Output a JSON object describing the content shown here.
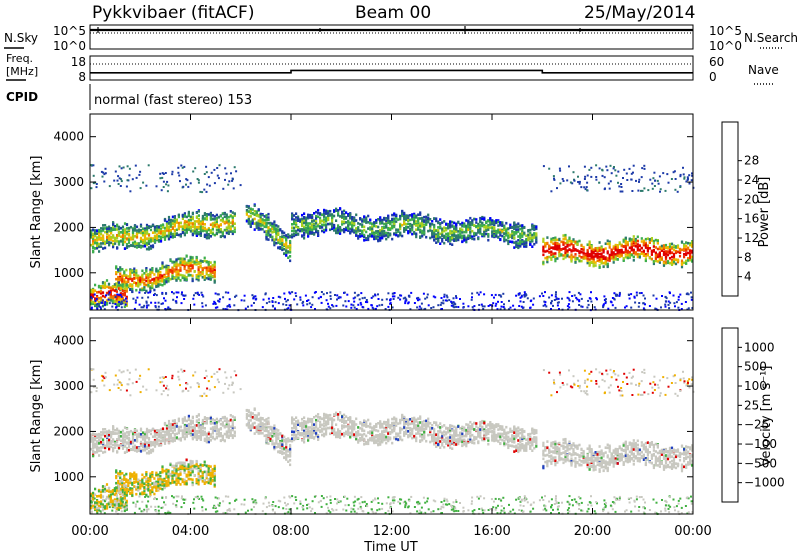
{
  "header": {
    "station": "Pykkvibaer (fitACF)",
    "beam": "Beam 00",
    "date": "25/May/2014"
  },
  "labels": {
    "nsky": "N.Sky",
    "nsearch": "N.Search",
    "freq_line1": "Freq.",
    "freq_line2": "[MHz]",
    "nave": "Nave",
    "cpid": "CPID",
    "cpid_text": "normal (fast stereo) 153",
    "x_title": "Time UT"
  },
  "colors": {
    "frame": "#000000",
    "background": "#ffffff",
    "ground_scatter": "#c8c8c0"
  },
  "chart_data": [
    {
      "type": "line",
      "panel": "noise",
      "series": [
        {
          "name": "N.Sky",
          "level": "approx 10^5"
        },
        {
          "name": "N.Search",
          "level": "approx 10^5"
        }
      ],
      "y_left_ticks": [
        "10^5",
        "10^0"
      ],
      "y_right_ticks": [
        "10^5",
        "10^0"
      ],
      "x_range_hours": [
        0,
        24
      ]
    },
    {
      "type": "line",
      "panel": "frequency",
      "y_left_ticks": [
        "18",
        "8"
      ],
      "y_right_ticks": [
        "60",
        "0"
      ],
      "freq_mhz_steps": [
        {
          "x": 0,
          "y": 11
        },
        {
          "x": 8,
          "y": 11
        },
        {
          "x": 8,
          "y": 12
        },
        {
          "x": 18,
          "y": 12
        },
        {
          "x": 18,
          "y": 11
        },
        {
          "x": 24,
          "y": 11
        }
      ],
      "nave_level": 40
    },
    {
      "type": "heatmap",
      "panel": "power",
      "ylabel": "Slant Range [km]",
      "ylim": [
        180,
        4500
      ],
      "y_ticks": [
        1000,
        2000,
        3000,
        4000
      ],
      "colorbar_title": "Power [dB]",
      "colorbar_ticks": [
        "4",
        "8",
        "12",
        "16",
        "20",
        "24",
        "28"
      ],
      "colorbar_range": [
        0,
        30
      ],
      "colorbar_colors": [
        "#0000ff",
        "#1c3aa8",
        "#2c7a6c",
        "#3cae4c",
        "#a8d020",
        "#f0b800",
        "#f07800",
        "#f03000",
        "#e00000"
      ],
      "bands_km": [
        {
          "t_start": 0,
          "t_end": 5.8,
          "r_start": 1700,
          "r_end": 2200,
          "r_mid_end": 2300,
          "power": 14
        },
        {
          "t_start": 6.2,
          "t_end": 8.0,
          "r_start": 2300,
          "r_end": 1600,
          "power": 12
        },
        {
          "t_start": 8.0,
          "t_end": 17.8,
          "r_start": 2150,
          "r_end": 1900,
          "power": 10
        },
        {
          "t_start": 1.0,
          "t_end": 5.0,
          "r_start": 850,
          "r_end": 1150,
          "power": 18
        },
        {
          "t_start": 18.0,
          "t_end": 24.0,
          "r_start": 1500,
          "r_end": 1500,
          "power": 24
        },
        {
          "t_start": 0,
          "t_end": 1.5,
          "r_start": 500,
          "r_end": 500,
          "power": 22
        }
      ]
    },
    {
      "type": "heatmap",
      "panel": "velocity",
      "ylabel": "Slant Range [km]",
      "ylim": [
        180,
        4500
      ],
      "y_ticks": [
        1000,
        2000,
        3000,
        4000
      ],
      "colorbar_title": "Velocity [m s⁻¹]",
      "colorbar_ticks": [
        "1000",
        "500",
        "100",
        "25",
        "−25",
        "−100",
        "−500",
        "−1000"
      ],
      "colorbar_colors": [
        "#2040c0",
        "#3060b0",
        "#208070",
        "#40b040",
        "#c8c8c0",
        "#c8c8c0",
        "#f0b000",
        "#f06000",
        "#e00000"
      ],
      "x_ticks": [
        "00:00",
        "04:00",
        "08:00",
        "12:00",
        "16:00",
        "20:00",
        "00:00"
      ],
      "x_range_hours": [
        0,
        24
      ]
    }
  ]
}
